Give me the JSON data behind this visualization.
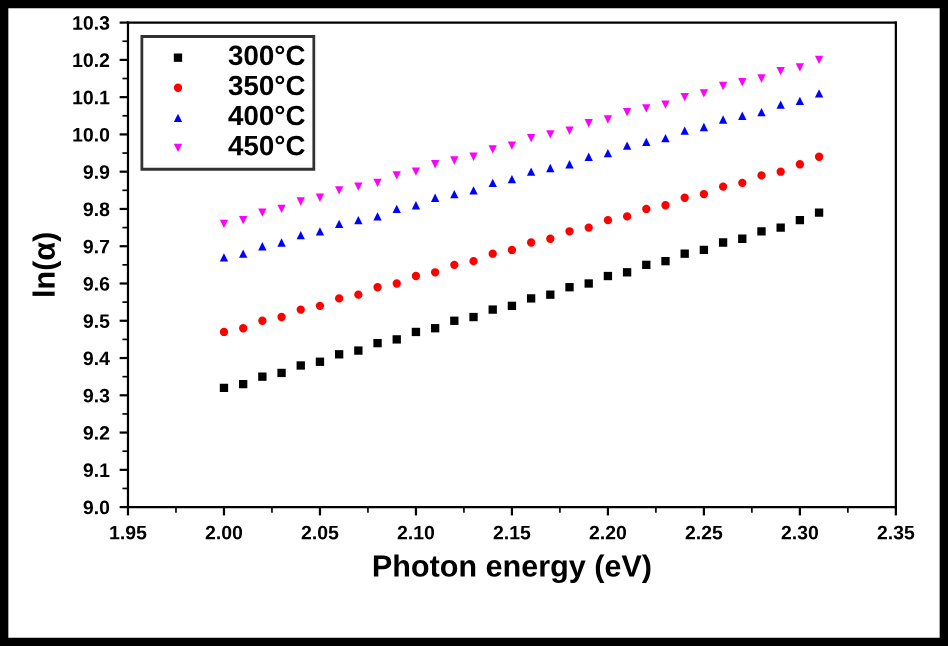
{
  "chart_data": {
    "type": "scatter",
    "xlabel": "Photon energy (eV)",
    "ylabel": "ln(α)",
    "x": [
      2.0,
      2.01,
      2.02,
      2.03,
      2.04,
      2.05,
      2.06,
      2.07,
      2.08,
      2.09,
      2.1,
      2.11,
      2.12,
      2.13,
      2.14,
      2.15,
      2.16,
      2.17,
      2.18,
      2.19,
      2.2,
      2.21,
      2.22,
      2.23,
      2.24,
      2.25,
      2.26,
      2.27,
      2.28,
      2.29,
      2.3,
      2.31
    ],
    "series": [
      {
        "name": "300°C",
        "color": "#000000",
        "marker": "square",
        "values": [
          9.32,
          9.33,
          9.35,
          9.36,
          9.38,
          9.39,
          9.41,
          9.42,
          9.44,
          9.45,
          9.47,
          9.48,
          9.5,
          9.51,
          9.53,
          9.54,
          9.56,
          9.57,
          9.59,
          9.6,
          9.62,
          9.63,
          9.65,
          9.66,
          9.68,
          9.69,
          9.71,
          9.72,
          9.74,
          9.75,
          9.77,
          9.79
        ]
      },
      {
        "name": "350°C",
        "color": "#ff0000",
        "marker": "circle",
        "values": [
          9.47,
          9.48,
          9.5,
          9.51,
          9.53,
          9.54,
          9.56,
          9.57,
          9.59,
          9.6,
          9.62,
          9.63,
          9.65,
          9.66,
          9.68,
          9.69,
          9.71,
          9.72,
          9.74,
          9.75,
          9.77,
          9.78,
          9.8,
          9.81,
          9.83,
          9.84,
          9.86,
          9.87,
          9.89,
          9.9,
          9.92,
          9.94
        ]
      },
      {
        "name": "400°C",
        "color": "#0000ff",
        "marker": "triangle",
        "values": [
          9.67,
          9.68,
          9.7,
          9.71,
          9.73,
          9.74,
          9.76,
          9.77,
          9.78,
          9.8,
          9.81,
          9.83,
          9.84,
          9.85,
          9.87,
          9.88,
          9.9,
          9.91,
          9.92,
          9.94,
          9.95,
          9.97,
          9.98,
          9.99,
          10.01,
          10.02,
          10.04,
          10.05,
          10.06,
          10.08,
          10.09,
          10.11
        ]
      },
      {
        "name": "450°C",
        "color": "#ff00ff",
        "marker": "triangle_down",
        "values": [
          9.76,
          9.77,
          9.79,
          9.8,
          9.82,
          9.83,
          9.85,
          9.86,
          9.87,
          9.89,
          9.9,
          9.92,
          9.93,
          9.94,
          9.96,
          9.97,
          9.99,
          10.0,
          10.01,
          10.03,
          10.04,
          10.06,
          10.07,
          10.08,
          10.1,
          10.11,
          10.13,
          10.14,
          10.15,
          10.17,
          10.18,
          10.2
        ]
      }
    ],
    "xlim": [
      1.95,
      2.35
    ],
    "xticks": [
      {
        "value": 1.95,
        "label": "1.95"
      },
      {
        "value": 2.0,
        "label": "2.00"
      },
      {
        "value": 2.05,
        "label": "2.05"
      },
      {
        "value": 2.1,
        "label": "2.10"
      },
      {
        "value": 2.15,
        "label": "2.15"
      },
      {
        "value": 2.2,
        "label": "2.20"
      },
      {
        "value": 2.25,
        "label": "2.25"
      },
      {
        "value": 2.3,
        "label": "2.30"
      },
      {
        "value": 2.35,
        "label": "2.35"
      }
    ],
    "ylim": [
      9.0,
      10.3
    ],
    "yticks": [
      {
        "value": 9.0,
        "label": "9.0"
      },
      9.1,
      9.2,
      9.3,
      9.4,
      9.5,
      9.6,
      9.7,
      9.8,
      9.9,
      {
        "value": 10.0,
        "label": "10.0"
      },
      10.1,
      10.2,
      10.3
    ],
    "grid": false,
    "legend": "top left"
  }
}
